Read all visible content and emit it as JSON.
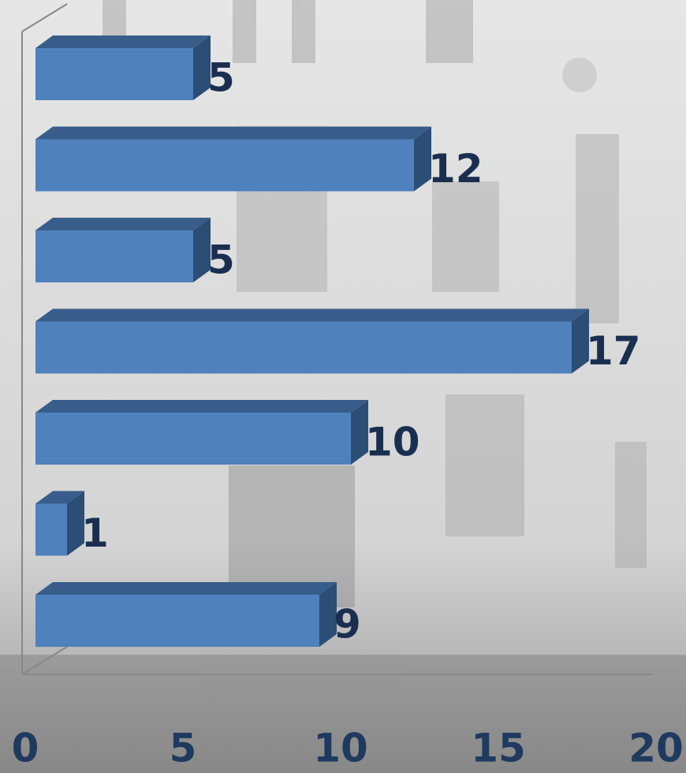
{
  "chart_data": {
    "type": "bar",
    "orientation": "horizontal",
    "categories": [
      null,
      null,
      null,
      null,
      null,
      null,
      null
    ],
    "values": [
      5,
      12,
      5,
      17,
      10,
      1,
      9
    ],
    "color": "#4f81bd",
    "xlim": [
      0,
      20
    ],
    "xticks": [
      0,
      5,
      10,
      15,
      20
    ]
  }
}
